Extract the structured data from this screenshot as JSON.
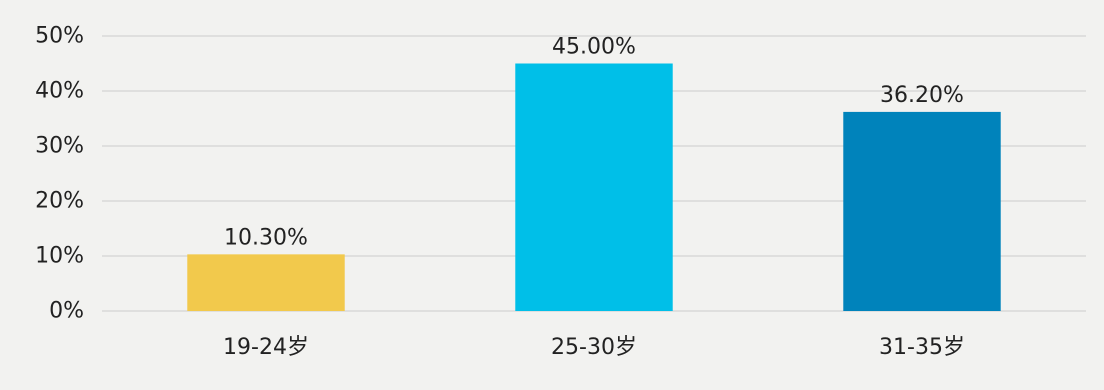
{
  "chart_data": {
    "type": "bar",
    "title": "",
    "xlabel": "",
    "ylabel": "",
    "categories": [
      "19-24岁",
      "25-30岁",
      "31-35岁"
    ],
    "values": [
      10.3,
      45.0,
      36.2
    ],
    "data_labels": [
      "10.30%",
      "45.00%",
      "36.20%"
    ],
    "bar_colors": [
      "#f2c94c",
      "#00bfe8",
      "#0083bb"
    ],
    "ylim": [
      0,
      50
    ],
    "yticks": [
      0,
      10,
      20,
      30,
      40,
      50
    ],
    "ytick_labels": [
      "0%",
      "10%",
      "20%",
      "30%",
      "40%",
      "50%"
    ],
    "grid": true,
    "legend": "none"
  }
}
